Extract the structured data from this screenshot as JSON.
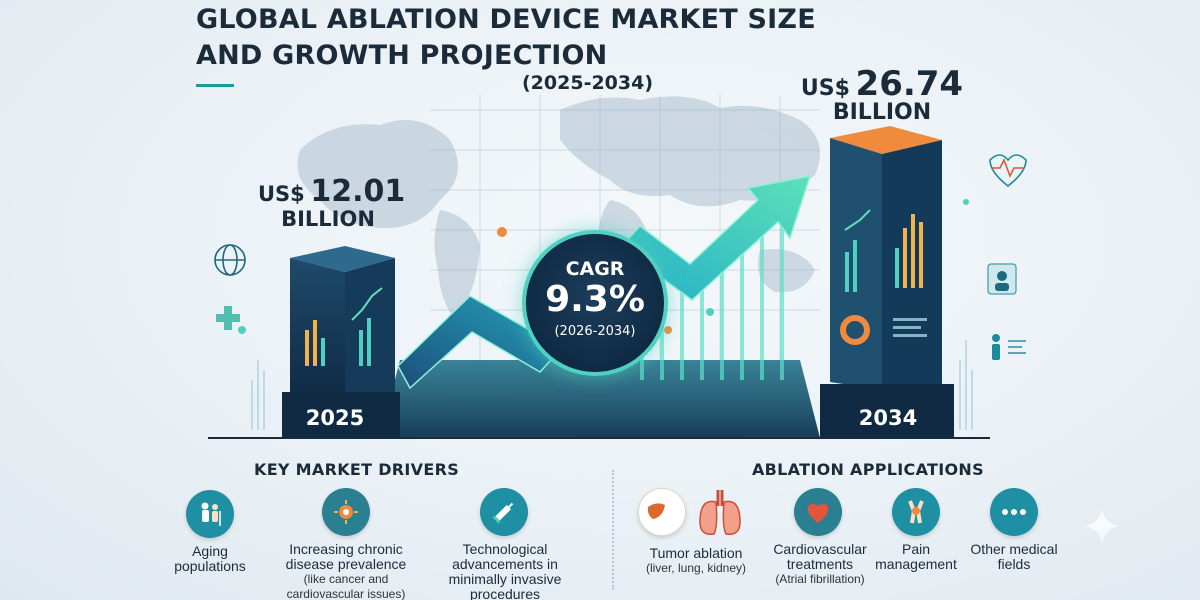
{
  "header": {
    "title": "GLOBAL ABLATION DEVICE MARKET SIZE AND GROWTH PROJECTION",
    "years": "(2025-2034)"
  },
  "market": {
    "start": {
      "currency": "US$",
      "amount": "12.01",
      "unit": "BILLION",
      "year": "2025"
    },
    "end": {
      "currency": "US$",
      "amount": "26.74",
      "unit": "BILLION",
      "year": "2034"
    },
    "cagr": {
      "label": "CAGR",
      "value": "9.3%",
      "years": "(2026-2034)"
    }
  },
  "drivers": {
    "heading": "KEY MARKET DRIVERS",
    "items": [
      {
        "label": "Aging populations",
        "icon": "elderly-people-icon"
      },
      {
        "label": "Increasing chronic disease prevalence",
        "sub": "(like cancer and cardiovascular issues)",
        "icon": "virus-gear-icon"
      },
      {
        "label": "Technological advancements in minimally invasive procedures",
        "icon": "syringe-icon"
      }
    ]
  },
  "applications": {
    "heading": "ABLATION APPLICATIONS",
    "items": [
      {
        "label": "Tumor ablation",
        "sub": "(liver, lung, kidney)",
        "icon": "liver-lung-icon"
      },
      {
        "label": "Cardiovascular treatments",
        "sub": "(Atrial fibrillation)",
        "icon": "heart-icon"
      },
      {
        "label": "Pain management",
        "icon": "joint-pain-icon"
      },
      {
        "label": "Other medical fields",
        "icon": "more-dots-icon"
      }
    ]
  },
  "colors": {
    "accent": "#1a9a9a",
    "navy": "#0f2a44",
    "orange": "#f08a3c",
    "teal": "#4fd0c0"
  }
}
